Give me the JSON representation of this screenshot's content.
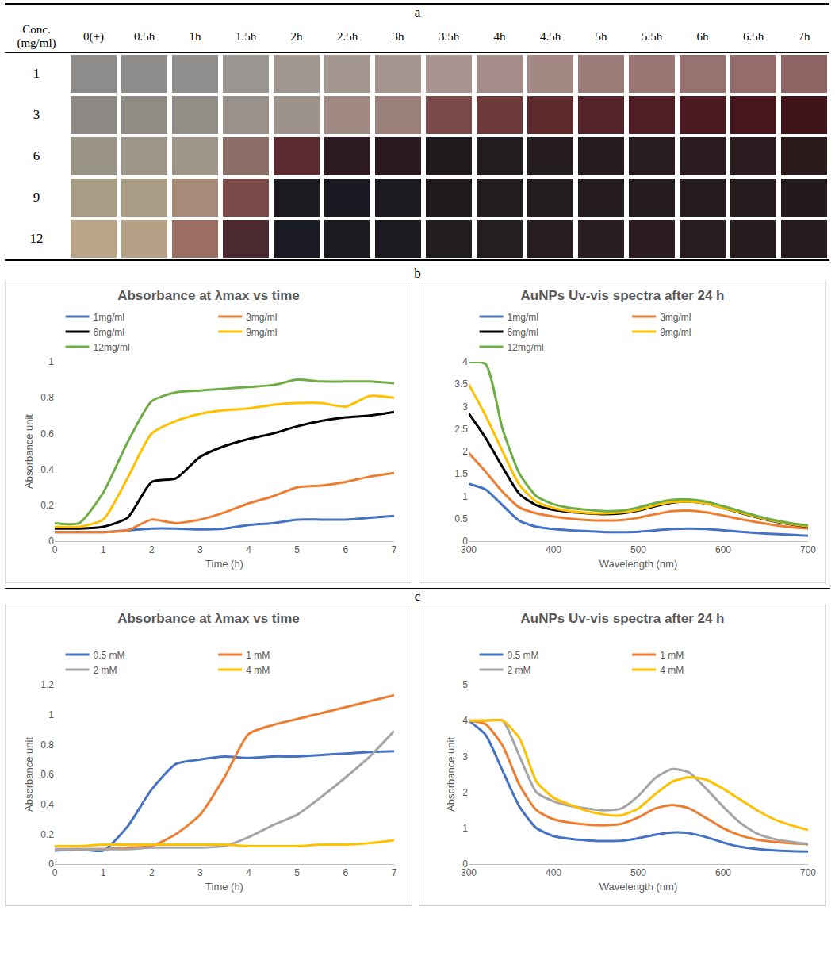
{
  "panel_labels": [
    "a",
    "b",
    "c"
  ],
  "table": {
    "header": [
      "Conc. (mg/ml)",
      "0(+)",
      "0.5h",
      "1h",
      "1.5h",
      "2h",
      "2.5h",
      "3h",
      "3.5h",
      "4h",
      "4.5h",
      "5h",
      "5.5h",
      "6h",
      "6.5h",
      "7h"
    ],
    "rows": [
      {
        "conc": "1",
        "colors": [
          "#8e8c8a",
          "#8f8d8b",
          "#92908e",
          "#9a9591",
          "#a09890",
          "#a39790",
          "#a7968f",
          "#a8938e",
          "#a58d89",
          "#a38884",
          "#9c7d7a",
          "#9a7775",
          "#987270",
          "#946c6c",
          "#8f6465"
        ]
      },
      {
        "conc": "3",
        "colors": [
          "#8d8a85",
          "#8f8b85",
          "#938e88",
          "#9a918a",
          "#9e938b",
          "#a08a83",
          "#9a7f7a",
          "#7a4a4a",
          "#6e3a3c",
          "#5e2a2e",
          "#54232a",
          "#4e1e24",
          "#4a1a20",
          "#45161c",
          "#3e1216"
        ]
      },
      {
        "conc": "6",
        "colors": [
          "#9a9487",
          "#9c9588",
          "#9f9689",
          "#8c6e68",
          "#5a2a30",
          "#2e1a22",
          "#2a1820",
          "#201a1e",
          "#221c20",
          "#241c20",
          "#261c20",
          "#281c20",
          "#2a1c20",
          "#2a1c1f",
          "#2a1a1c"
        ]
      },
      {
        "conc": "9",
        "colors": [
          "#a89c84",
          "#a99b84",
          "#a88a78",
          "#7a4a48",
          "#1e1a22",
          "#1a1820",
          "#1c1a20",
          "#1e1a1e",
          "#201c20",
          "#221c20",
          "#241c20",
          "#241c20",
          "#261c1f",
          "#261c1e",
          "#241a1c"
        ]
      },
      {
        "conc": "12",
        "colors": [
          "#b8a588",
          "#b5a085",
          "#9a6e62",
          "#4a2a30",
          "#1a1a22",
          "#1a1a20",
          "#1c1a20",
          "#201c20",
          "#241e22",
          "#261e22",
          "#2a1e22",
          "#2a1c20",
          "#281c20",
          "#261c1e",
          "#261a1c"
        ]
      }
    ]
  },
  "chart_data": [
    {
      "type": "line",
      "title": "Absorbance at λmax vs time",
      "xlabel": "Time (h)",
      "ylabel": "Absorbance unit",
      "x": [
        0,
        0.5,
        1,
        1.5,
        2,
        2.5,
        3,
        3.5,
        4,
        4.5,
        5,
        5.5,
        6,
        6.5,
        7
      ],
      "xlim": [
        0,
        7
      ],
      "xticks": [
        0,
        1,
        2,
        3,
        4,
        5,
        6,
        7
      ],
      "ylim": [
        0,
        1
      ],
      "yticks": [
        0,
        0.2,
        0.4,
        0.6,
        0.8,
        1
      ],
      "grid": false,
      "legend": "top",
      "series": [
        {
          "name": "1mg/ml",
          "color": "#4472c4",
          "values": [
            0.05,
            0.05,
            0.05,
            0.06,
            0.07,
            0.07,
            0.065,
            0.07,
            0.09,
            0.1,
            0.12,
            0.12,
            0.12,
            0.13,
            0.14
          ]
        },
        {
          "name": "3mg/ml",
          "color": "#ed7d31",
          "values": [
            0.05,
            0.05,
            0.05,
            0.06,
            0.12,
            0.1,
            0.12,
            0.16,
            0.21,
            0.25,
            0.3,
            0.31,
            0.33,
            0.36,
            0.38
          ]
        },
        {
          "name": "6mg/ml",
          "color": "#000000",
          "values": [
            0.07,
            0.07,
            0.08,
            0.13,
            0.33,
            0.35,
            0.47,
            0.53,
            0.57,
            0.6,
            0.64,
            0.67,
            0.69,
            0.7,
            0.72
          ]
        },
        {
          "name": "9mg/ml",
          "color": "#ffc000",
          "values": [
            0.08,
            0.08,
            0.12,
            0.35,
            0.6,
            0.67,
            0.71,
            0.73,
            0.74,
            0.76,
            0.77,
            0.77,
            0.75,
            0.81,
            0.8
          ]
        },
        {
          "name": "12mg/ml",
          "color": "#70ad47",
          "values": [
            0.1,
            0.1,
            0.27,
            0.55,
            0.78,
            0.83,
            0.84,
            0.85,
            0.86,
            0.87,
            0.9,
            0.89,
            0.89,
            0.89,
            0.88
          ]
        }
      ]
    },
    {
      "type": "line",
      "title": "AuNPs Uv-vis spectra after 24 h",
      "xlabel": "Wavelength (nm)",
      "x": [
        300,
        320,
        340,
        360,
        380,
        400,
        420,
        440,
        460,
        480,
        500,
        520,
        540,
        560,
        580,
        600,
        620,
        640,
        660,
        680,
        700
      ],
      "xlim": [
        300,
        700
      ],
      "xticks": [
        300,
        400,
        500,
        600,
        700
      ],
      "ylim": [
        0,
        4
      ],
      "yticks": [
        0,
        0.5,
        1,
        1.5,
        2,
        2.5,
        3,
        3.5,
        4
      ],
      "grid": false,
      "legend": "top",
      "series": [
        {
          "name": "1mg/ml",
          "color": "#4472c4",
          "values": [
            1.28,
            1.15,
            0.8,
            0.45,
            0.32,
            0.27,
            0.24,
            0.22,
            0.2,
            0.2,
            0.21,
            0.24,
            0.27,
            0.28,
            0.27,
            0.24,
            0.21,
            0.18,
            0.16,
            0.14,
            0.12
          ]
        },
        {
          "name": "3mg/ml",
          "color": "#ed7d31",
          "values": [
            1.97,
            1.55,
            1.1,
            0.75,
            0.62,
            0.55,
            0.5,
            0.47,
            0.46,
            0.47,
            0.52,
            0.6,
            0.67,
            0.68,
            0.64,
            0.57,
            0.49,
            0.42,
            0.36,
            0.31,
            0.28
          ]
        },
        {
          "name": "6mg/ml",
          "color": "#000000",
          "values": [
            2.85,
            2.3,
            1.65,
            1.05,
            0.8,
            0.7,
            0.65,
            0.62,
            0.6,
            0.62,
            0.68,
            0.78,
            0.86,
            0.88,
            0.84,
            0.74,
            0.63,
            0.53,
            0.44,
            0.37,
            0.32
          ]
        },
        {
          "name": "9mg/ml",
          "color": "#ffc000",
          "values": [
            3.5,
            2.8,
            2.0,
            1.25,
            0.88,
            0.74,
            0.67,
            0.63,
            0.62,
            0.64,
            0.7,
            0.8,
            0.87,
            0.88,
            0.84,
            0.74,
            0.64,
            0.54,
            0.45,
            0.38,
            0.33
          ]
        },
        {
          "name": "12mg/ml",
          "color": "#70ad47",
          "values": [
            4.0,
            3.95,
            2.5,
            1.5,
            1.0,
            0.82,
            0.74,
            0.7,
            0.67,
            0.68,
            0.75,
            0.85,
            0.92,
            0.93,
            0.88,
            0.78,
            0.67,
            0.56,
            0.47,
            0.4,
            0.35
          ]
        }
      ]
    },
    {
      "type": "line",
      "title": "Absorbance at λmax vs time",
      "xlabel": "Time (h)",
      "ylabel": "Absorbance unit",
      "x": [
        0,
        0.5,
        1,
        1.5,
        2,
        2.5,
        3,
        3.5,
        4,
        4.5,
        5,
        5.5,
        6,
        6.5,
        7
      ],
      "xlim": [
        0,
        7
      ],
      "xticks": [
        0,
        1,
        2,
        3,
        4,
        5,
        6,
        7
      ],
      "ylim": [
        0,
        1.2
      ],
      "yticks": [
        0,
        0.2,
        0.4,
        0.6,
        0.8,
        1,
        1.2
      ],
      "grid": false,
      "legend": "top",
      "series": [
        {
          "name": "0.5 mM",
          "color": "#4472c4",
          "values": [
            0.09,
            0.1,
            0.09,
            0.25,
            0.5,
            0.67,
            0.7,
            0.72,
            0.71,
            0.72,
            0.72,
            0.73,
            0.74,
            0.75,
            0.755
          ]
        },
        {
          "name": "1 mM",
          "color": "#ed7d31",
          "values": [
            0.1,
            0.1,
            0.1,
            0.11,
            0.12,
            0.2,
            0.33,
            0.58,
            0.87,
            0.93,
            0.97,
            1.01,
            1.05,
            1.09,
            1.13
          ]
        },
        {
          "name": "2 mM",
          "color": "#a5a5a5",
          "values": [
            0.1,
            0.1,
            0.1,
            0.1,
            0.11,
            0.11,
            0.11,
            0.12,
            0.18,
            0.26,
            0.33,
            0.45,
            0.58,
            0.72,
            0.89
          ]
        },
        {
          "name": "4 mM",
          "color": "#ffc000",
          "values": [
            0.12,
            0.12,
            0.13,
            0.13,
            0.13,
            0.13,
            0.13,
            0.13,
            0.12,
            0.12,
            0.12,
            0.13,
            0.13,
            0.14,
            0.16
          ]
        }
      ]
    },
    {
      "type": "line",
      "title": "AuNPs Uv-vis spectra after 24 h",
      "xlabel": "Wavelength (nm)",
      "ylabel": "Absorbance unit",
      "x": [
        300,
        320,
        340,
        360,
        380,
        400,
        420,
        440,
        460,
        480,
        500,
        520,
        540,
        560,
        580,
        600,
        620,
        640,
        660,
        680,
        700
      ],
      "xlim": [
        300,
        700
      ],
      "xticks": [
        300,
        400,
        500,
        600,
        700
      ],
      "ylim": [
        0,
        5
      ],
      "yticks": [
        0,
        1,
        2,
        3,
        4,
        5
      ],
      "grid": false,
      "legend": "top",
      "series": [
        {
          "name": "0.5 mM",
          "color": "#4472c4",
          "values": [
            4.0,
            3.6,
            2.6,
            1.6,
            1.0,
            0.78,
            0.7,
            0.66,
            0.64,
            0.65,
            0.72,
            0.82,
            0.88,
            0.86,
            0.75,
            0.6,
            0.48,
            0.42,
            0.38,
            0.36,
            0.35
          ]
        },
        {
          "name": "1 mM",
          "color": "#ed7d31",
          "values": [
            4.0,
            3.9,
            3.3,
            2.2,
            1.5,
            1.25,
            1.15,
            1.1,
            1.08,
            1.12,
            1.3,
            1.55,
            1.65,
            1.55,
            1.28,
            1.0,
            0.8,
            0.68,
            0.62,
            0.58,
            0.55
          ]
        },
        {
          "name": "2 mM",
          "color": "#a5a5a5",
          "values": [
            4.0,
            4.0,
            4.0,
            3.0,
            2.0,
            1.75,
            1.62,
            1.55,
            1.5,
            1.55,
            1.9,
            2.4,
            2.65,
            2.55,
            2.1,
            1.6,
            1.15,
            0.85,
            0.7,
            0.62,
            0.56
          ]
        },
        {
          "name": "4 mM",
          "color": "#ffc000",
          "values": [
            4.0,
            4.0,
            4.0,
            3.5,
            2.3,
            1.85,
            1.65,
            1.48,
            1.38,
            1.36,
            1.55,
            1.95,
            2.3,
            2.42,
            2.35,
            2.1,
            1.8,
            1.5,
            1.25,
            1.08,
            0.95
          ]
        }
      ]
    }
  ]
}
